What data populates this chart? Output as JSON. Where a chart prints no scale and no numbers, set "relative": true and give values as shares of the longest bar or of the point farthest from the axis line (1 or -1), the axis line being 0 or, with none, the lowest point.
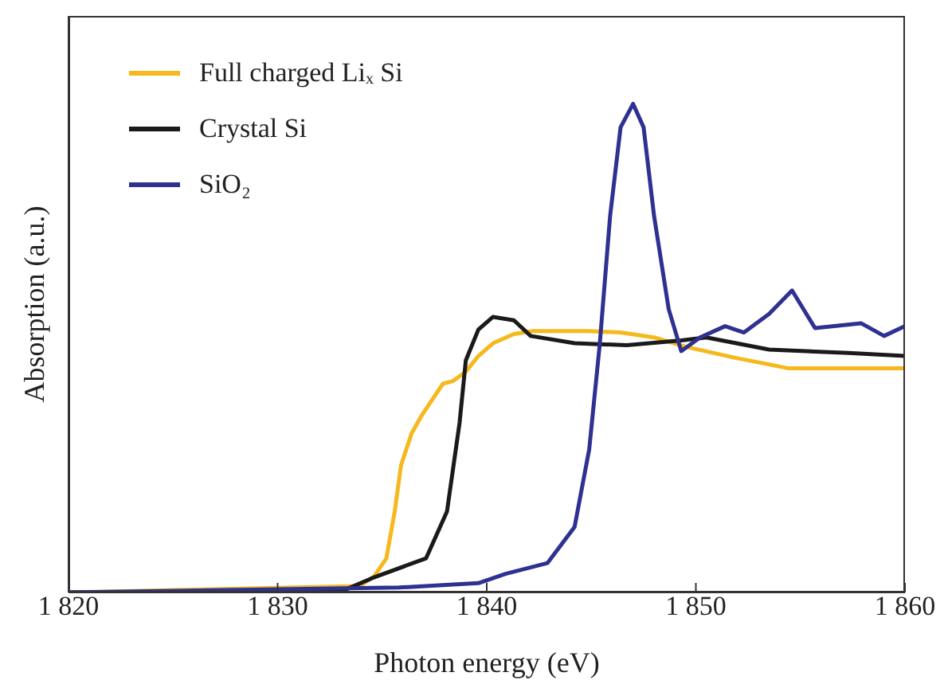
{
  "chart_data": {
    "type": "line",
    "relative": true,
    "xlabel": "Photon energy (eV)",
    "ylabel": "Absorption (a.u.)",
    "xlim": [
      1820,
      1860
    ],
    "xticks": [
      {
        "value": 1820,
        "label": "1 820"
      },
      {
        "value": 1830,
        "label": "1 830"
      },
      {
        "value": 1840,
        "label": "1 840"
      },
      {
        "value": 1850,
        "label": "1 850"
      },
      {
        "value": 1860,
        "label": "1 860"
      }
    ],
    "legend": "top left",
    "line_style": "solid",
    "marker": "none",
    "grid": false,
    "series": [
      {
        "name": "Full charged Liₓ Si",
        "color": "#f5b91e",
        "x": [
          1820,
          1833.9,
          1834.6,
          1835.2,
          1835.6,
          1835.9,
          1836.4,
          1836.9,
          1837.9,
          1838.4,
          1839,
          1839.6,
          1840.3,
          1841.3,
          1842.2,
          1844.9,
          1846.4,
          1848,
          1849.5,
          1851.8,
          1854.4,
          1857.1,
          1860
        ],
        "values": [
          0,
          0.013,
          0.032,
          0.07,
          0.166,
          0.26,
          0.325,
          0.363,
          0.427,
          0.433,
          0.452,
          0.484,
          0.51,
          0.529,
          0.535,
          0.535,
          0.532,
          0.522,
          0.503,
          0.481,
          0.459,
          0.459,
          0.459
        ]
      },
      {
        "name": "Crystal Si",
        "color": "#1a1a1a",
        "x": [
          1820,
          1833.1,
          1834.5,
          1837.1,
          1838.1,
          1838.7,
          1839,
          1839.6,
          1840.3,
          1841.3,
          1842.1,
          1844.2,
          1846.7,
          1849.3,
          1850.5,
          1853.5,
          1857.3,
          1860
        ],
        "values": [
          0,
          0.003,
          0.029,
          0.07,
          0.166,
          0.347,
          0.475,
          0.538,
          0.564,
          0.557,
          0.525,
          0.51,
          0.506,
          0.516,
          0.522,
          0.497,
          0.49,
          0.484
        ]
      },
      {
        "name": "SiO₂",
        "color": "#2e3192",
        "x": [
          1820,
          1835.8,
          1839.6,
          1840.9,
          1842.9,
          1844.2,
          1844.9,
          1845.4,
          1845.9,
          1846.4,
          1847,
          1847.5,
          1848,
          1848.7,
          1849.3,
          1850.2,
          1851.4,
          1852.3,
          1853.5,
          1854.6,
          1855.7,
          1857.9,
          1859,
          1860
        ],
        "values": [
          0,
          0.01,
          0.019,
          0.038,
          0.06,
          0.134,
          0.293,
          0.506,
          0.771,
          0.952,
          1,
          0.952,
          0.771,
          0.58,
          0.494,
          0.522,
          0.545,
          0.532,
          0.57,
          0.618,
          0.541,
          0.551,
          0.525,
          0.545
        ]
      }
    ]
  }
}
